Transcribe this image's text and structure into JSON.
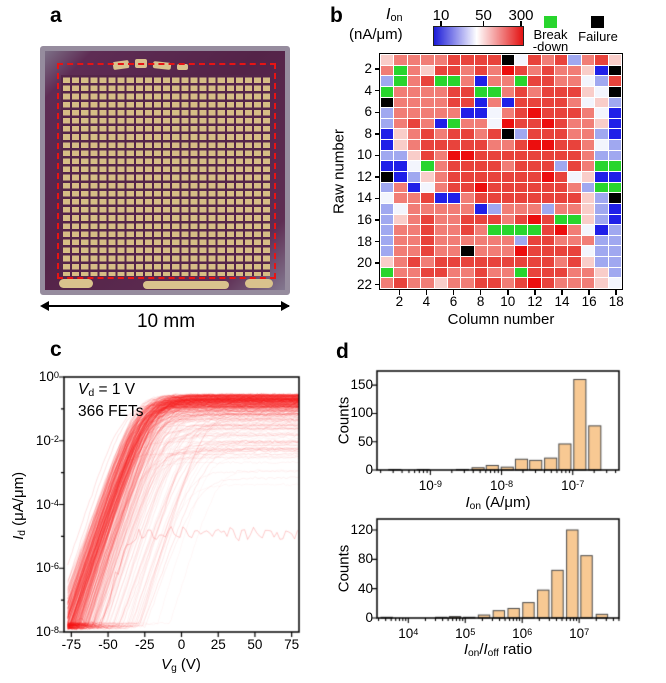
{
  "panels": {
    "a": {
      "label": "a",
      "scale_label": "10 mm",
      "chip": {
        "body_color": "#542348",
        "pad_color": "#d6bd85",
        "rim_color": "#968c9e",
        "outline_color": "#e71414",
        "pad_columns": 24,
        "pad_rows": 26
      }
    },
    "b": {
      "label": "b",
      "legend": {
        "title_parts": [
          [
            "i",
            "I"
          ],
          [
            "sub",
            "on"
          ]
        ],
        "unit": "(nA/μm)",
        "cbar_ticks": [
          "10",
          "50",
          "300"
        ],
        "cbar_left": "#1c1cd8",
        "cbar_mid": "#ffffff",
        "cbar_right": "#e31212",
        "breakdown_line1": "Break",
        "breakdown_line2": "-down",
        "breakdown_color": "#28d52d",
        "failure_label": "Failure",
        "failure_color": "#000000"
      },
      "x_label": "Column number",
      "y_label": "Raw number"
    },
    "c": {
      "label": "c",
      "ann1_parts": [
        [
          "i",
          "V"
        ],
        [
          "sub",
          "d"
        ],
        [
          "t",
          " = 1 V"
        ]
      ],
      "ann2": "366 FETs",
      "x_label_parts": [
        [
          "i",
          "V"
        ],
        [
          "sub",
          "g"
        ],
        [
          "t",
          " (V)"
        ]
      ],
      "y_label_parts": [
        [
          "i",
          "I"
        ],
        [
          "sub",
          "d"
        ],
        [
          "t",
          " (μA/μm)"
        ]
      ]
    },
    "d": {
      "label": "d",
      "hist_ion": {
        "y_label": "Counts",
        "x_label_parts": [
          [
            "i",
            "I"
          ],
          [
            "sub",
            "on"
          ],
          [
            "t",
            " (A/μm)"
          ]
        ]
      },
      "hist_ratio": {
        "y_label": "Counts",
        "x_label_parts": [
          [
            "i",
            "I"
          ],
          [
            "sub",
            "on"
          ],
          [
            "t",
            "/"
          ],
          [
            "i",
            "I"
          ],
          [
            "sub",
            "off"
          ],
          [
            "t",
            " ratio"
          ]
        ]
      }
    }
  },
  "chart_data": [
    {
      "type": "heatmap",
      "title": "Ion (nA/um) wafer map",
      "x_label": "Column number",
      "y_label": "Raw number",
      "n_cols": 18,
      "n_rows": 22,
      "x_ticks": [
        2,
        4,
        6,
        8,
        10,
        12,
        14,
        16,
        18
      ],
      "y_ticks": [
        2,
        4,
        6,
        8,
        10,
        12,
        14,
        16,
        18,
        20,
        22
      ],
      "color_key": {
        "B": "#1f1fe8",
        "l": "#a0a8f0",
        "w": "#f3f5fd",
        "p": "#f9cdc9",
        "r": "#f17d76",
        "R": "#e8433c",
        "D": "#ec0e0e",
        "G": "#28d52d",
        "K": "#000000"
      },
      "value_key_nA_um": {
        "B": 10,
        "l": 25,
        "w": 50,
        "p": 80,
        "r": 130,
        "R": 220,
        "D": 300,
        "G": "breakdown",
        "K": "failure"
      },
      "rows": [
        "prrrrRRRRKwRrRlrRp",
        "rGrpRRrRrDRrRrrpBK",
        "lGrRGGrBrrGRRrrwlR",
        "GrrrrRRGGrRrRRRpwK",
        "KrrrrRRBrBRRRRrwpl",
        "lrrrrrBBwrRDRRRrwB",
        "lrRrBGrrwDRRDRrrpB",
        "BprRrRRrRKlRRRrrlB",
        "BprRRRRRrrRDDRRrwl",
        "llpRrDDRRRRRRRRrll",
        "BBwGrRRRRrRRRlRrGG",
        "KBlprRRRRRRRDRwpBB",
        "lrBwrRRDRRRRRRrlGG",
        "wrrRBBrRRRRRRRRplK",
        "lwrrrrrBlrrrlrrplB",
        "lprRrrRRRrRDRGGplB",
        "lrrRrrRrGGGGRDrwBl",
        "lrrRrrrrrrlRRrrrll",
        "lrrRrrKrrrDRRRRwll",
        "prRrRRRRRRRRRrRpll",
        "GrrRRrrRrrGRRRrrpl",
        "rRrrprrRRrRDRrrrpw"
      ]
    },
    {
      "type": "line",
      "title": "Transfer curves",
      "n_curves": 366,
      "curve_color": "#f51515",
      "x_range": [
        -80,
        80
      ],
      "y_log_range": [
        -8,
        0
      ],
      "x_ticks": [
        -75,
        -50,
        -25,
        0,
        25,
        50,
        75
      ],
      "y_tick_exponents": [
        0,
        -2,
        -4,
        -6,
        -8
      ],
      "annotations": [
        "Vd = 1 V",
        "366 FETs"
      ]
    },
    {
      "type": "bar",
      "x_scale": "log10",
      "x_log_range": [
        -9.75,
        -6.35
      ],
      "y_range": [
        0,
        175
      ],
      "y_ticks": [
        0,
        50,
        100,
        150
      ],
      "x_tick_exponents": [
        -9,
        -8,
        -7
      ],
      "bar_log_width": 0.17,
      "fill": "#f8c993",
      "stroke": "#4a4a4a",
      "bars": [
        {
          "x": -9.5,
          "count": 1
        },
        {
          "x": -9.1,
          "count": 1
        },
        {
          "x": -8.55,
          "count": 1
        },
        {
          "x": -8.33,
          "count": 4
        },
        {
          "x": -8.13,
          "count": 8
        },
        {
          "x": -7.92,
          "count": 5
        },
        {
          "x": -7.72,
          "count": 19
        },
        {
          "x": -7.52,
          "count": 17
        },
        {
          "x": -7.31,
          "count": 21
        },
        {
          "x": -7.11,
          "count": 46
        },
        {
          "x": -6.9,
          "count": 160
        },
        {
          "x": -6.69,
          "count": 78
        }
      ]
    },
    {
      "type": "bar",
      "x_scale": "log10",
      "x_log_range": [
        3.45,
        7.7
      ],
      "y_range": [
        0,
        135
      ],
      "y_ticks": [
        0,
        40,
        80,
        120
      ],
      "x_tick_exponents": [
        4,
        5,
        6,
        7
      ],
      "bar_log_width": 0.2,
      "fill": "#f8c993",
      "stroke": "#4a4a4a",
      "bars": [
        {
          "x": 3.62,
          "count": 1
        },
        {
          "x": 4.58,
          "count": 1
        },
        {
          "x": 4.82,
          "count": 2
        },
        {
          "x": 5.07,
          "count": 1
        },
        {
          "x": 5.33,
          "count": 4
        },
        {
          "x": 5.59,
          "count": 10
        },
        {
          "x": 5.85,
          "count": 13
        },
        {
          "x": 6.11,
          "count": 21
        },
        {
          "x": 6.37,
          "count": 38
        },
        {
          "x": 6.62,
          "count": 65
        },
        {
          "x": 6.88,
          "count": 120
        },
        {
          "x": 7.13,
          "count": 85
        },
        {
          "x": 7.4,
          "count": 5
        }
      ]
    }
  ]
}
